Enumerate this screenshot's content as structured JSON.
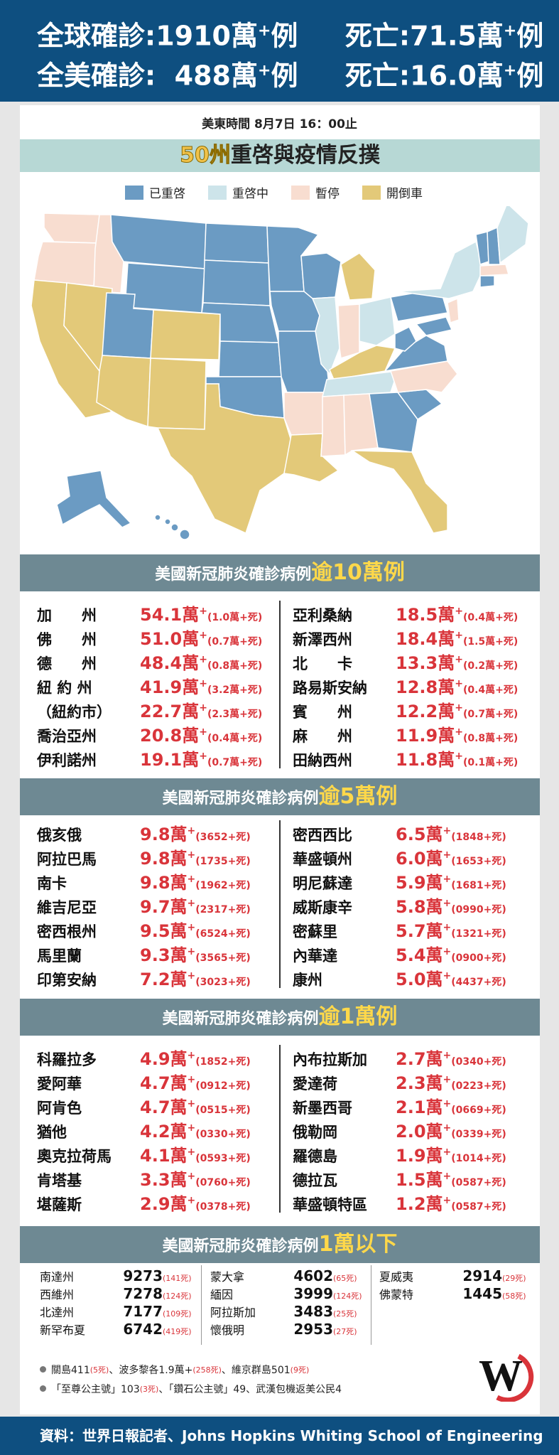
{
  "header": {
    "global_label": "全球確診:",
    "global_value": "1910萬",
    "global_deaths_label": "死亡:",
    "global_deaths_value": "71.5萬",
    "us_label": "全美確診:",
    "us_value": "488萬",
    "us_deaths_label": "死亡:",
    "us_deaths_value": "16.0萬",
    "plus": "+",
    "unit": "例"
  },
  "date_line": "美東時間  8月7日  16：00止",
  "map_title": {
    "highlight": "50州",
    "rest": "重啓與疫情反撲"
  },
  "legend": [
    {
      "label": "已重啓",
      "color": "#6b9bc3"
    },
    {
      "label": "重啓中",
      "color": "#cde4ea"
    },
    {
      "label": "暫停",
      "color": "#f8ddd0"
    },
    {
      "label": "開倒車",
      "color": "#e3c979"
    }
  ],
  "sections": [
    {
      "title": "美國新冠肺炎確診病例",
      "highlight": "逾10萬例",
      "left": [
        {
          "name": "加　　州",
          "value": "54.1萬",
          "deaths": "(1.0萬+死)"
        },
        {
          "name": "佛　　州",
          "value": "51.0萬",
          "deaths": "(0.7萬+死)"
        },
        {
          "name": "德　　州",
          "value": "48.4萬",
          "deaths": "(0.8萬+死)"
        },
        {
          "name": "紐 約 州",
          "value": "41.9萬",
          "deaths": "(3.2萬+死)"
        },
        {
          "name": "（紐約市）",
          "value": "22.7萬",
          "deaths": "(2.3萬+死)"
        },
        {
          "name": "喬治亞州",
          "value": "20.8萬",
          "deaths": "(0.4萬+死)"
        },
        {
          "name": "伊利諾州",
          "value": "19.1萬",
          "deaths": "(0.7萬+死)"
        }
      ],
      "right": [
        {
          "name": "亞利桑納",
          "value": "18.5萬",
          "deaths": "(0.4萬+死)"
        },
        {
          "name": "新澤西州",
          "value": "18.4萬",
          "deaths": "(1.5萬+死)"
        },
        {
          "name": "北　　卡",
          "value": "13.3萬",
          "deaths": "(0.2萬+死)"
        },
        {
          "name": "路易斯安納",
          "value": "12.8萬",
          "deaths": "(0.4萬+死)"
        },
        {
          "name": "賓　　州",
          "value": "12.2萬",
          "deaths": "(0.7萬+死)"
        },
        {
          "name": "麻　　州",
          "value": "11.9萬",
          "deaths": "(0.8萬+死)"
        },
        {
          "name": "田納西州",
          "value": "11.8萬",
          "deaths": "(0.1萬+死)"
        }
      ]
    },
    {
      "title": "美國新冠肺炎確診病例",
      "highlight": "逾5萬例",
      "left": [
        {
          "name": "俄亥俄",
          "value": "9.8萬",
          "deaths": "(3652+死)"
        },
        {
          "name": "阿拉巴馬",
          "value": "9.8萬",
          "deaths": "(1735+死)"
        },
        {
          "name": "南卡",
          "value": "9.8萬",
          "deaths": "(1962+死)"
        },
        {
          "name": "維吉尼亞",
          "value": "9.7萬",
          "deaths": "(2317+死)"
        },
        {
          "name": "密西根州",
          "value": "9.5萬",
          "deaths": "(6524+死)"
        },
        {
          "name": "馬里蘭",
          "value": "9.3萬",
          "deaths": "(3565+死)"
        },
        {
          "name": "印第安納",
          "value": "7.2萬",
          "deaths": "(3023+死)"
        }
      ],
      "right": [
        {
          "name": "密西西比",
          "value": "6.5萬",
          "deaths": "(1848+死)"
        },
        {
          "name": "華盛頓州",
          "value": "6.0萬",
          "deaths": "(1653+死)"
        },
        {
          "name": "明尼蘇達",
          "value": "5.9萬",
          "deaths": "(1681+死)"
        },
        {
          "name": "威斯康辛",
          "value": "5.8萬",
          "deaths": "(0990+死)"
        },
        {
          "name": "密蘇里",
          "value": "5.7萬",
          "deaths": "(1321+死)"
        },
        {
          "name": "內華達",
          "value": "5.4萬",
          "deaths": "(0900+死)"
        },
        {
          "name": "康州",
          "value": "5.0萬",
          "deaths": "(4437+死)"
        }
      ]
    },
    {
      "title": "美國新冠肺炎確診病例",
      "highlight": "逾1萬例",
      "left": [
        {
          "name": "科羅拉多",
          "value": "4.9萬",
          "deaths": "(1852+死)"
        },
        {
          "name": "愛阿華",
          "value": "4.7萬",
          "deaths": "(0912+死)"
        },
        {
          "name": "阿肯色",
          "value": "4.7萬",
          "deaths": "(0515+死)"
        },
        {
          "name": "猶他",
          "value": "4.2萬",
          "deaths": "(0330+死)"
        },
        {
          "name": "奧克拉荷馬",
          "value": "4.1萬",
          "deaths": "(0593+死)"
        },
        {
          "name": "肯塔基",
          "value": "3.3萬",
          "deaths": "(0760+死)"
        },
        {
          "name": "堪薩斯",
          "value": "2.9萬",
          "deaths": "(0378+死)"
        }
      ],
      "right": [
        {
          "name": "內布拉斯加",
          "value": "2.7萬",
          "deaths": "(0340+死)"
        },
        {
          "name": "愛達荷",
          "value": "2.3萬",
          "deaths": "(0223+死)"
        },
        {
          "name": "新墨西哥",
          "value": "2.1萬",
          "deaths": "(0669+死)"
        },
        {
          "name": "俄勒岡",
          "value": "2.0萬",
          "deaths": "(0339+死)"
        },
        {
          "name": "羅德島",
          "value": "1.9萬",
          "deaths": "(1014+死)"
        },
        {
          "name": "德拉瓦",
          "value": "1.5萬",
          "deaths": "(0587+死)"
        },
        {
          "name": "華盛頓特區",
          "value": "1.2萬",
          "deaths": "(0587+死)"
        }
      ]
    }
  ],
  "under_section": {
    "title": "美國新冠肺炎確診病例",
    "highlight": "1萬以下",
    "col1": [
      {
        "name": "南達州",
        "num": "9273",
        "deaths": "(141死)"
      },
      {
        "name": "西維州",
        "num": "7278",
        "deaths": "(124死)"
      },
      {
        "name": "北達州",
        "num": "7177",
        "deaths": "(109死)"
      },
      {
        "name": "新罕布夏",
        "num": "6742",
        "deaths": "(419死)"
      }
    ],
    "col2": [
      {
        "name": "蒙大拿",
        "num": "4602",
        "deaths": "(65死)"
      },
      {
        "name": "緬因",
        "num": "3999",
        "deaths": "(124死)"
      },
      {
        "name": "阿拉斯加",
        "num": "3483",
        "deaths": "(25死)"
      },
      {
        "name": "懷俄明",
        "num": "2953",
        "deaths": "(27死)"
      }
    ],
    "col3": [
      {
        "name": "夏威夷",
        "num": "2914",
        "deaths": "(29死)"
      },
      {
        "name": "佛蒙特",
        "num": "1445",
        "deaths": "(58死)"
      }
    ]
  },
  "notes": {
    "line1_a": "關島411",
    "line1_a_d": "(5死)",
    "line1_b": "、波多黎各1.9萬+",
    "line1_b_d": "(258死)",
    "line1_c": "、維京群島501",
    "line1_c_d": "(9死)",
    "line2_a": "「至尊公主號」103",
    "line2_a_d": "(3死)",
    "line2_b": "、「鑽石公主號」49、武漢包機返美公民4"
  },
  "footer": "資料：世界日報記者、Johns Hopkins  Whiting School of Engineering",
  "logo_text": "W"
}
